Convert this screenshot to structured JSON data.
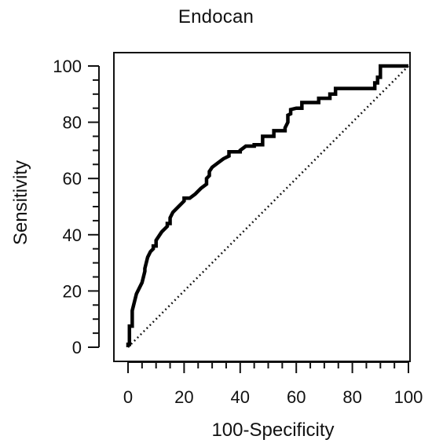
{
  "chart_data": {
    "type": "line",
    "title": "Endocan",
    "xlabel": "100-Specificity",
    "ylabel": "Sensitivity",
    "xlim": [
      0,
      100
    ],
    "ylim": [
      0,
      100
    ],
    "xticks": [
      0,
      20,
      40,
      60,
      80,
      100
    ],
    "yticks": [
      0,
      20,
      40,
      60,
      80,
      100
    ],
    "grid": false,
    "series": [
      {
        "style": "solid",
        "x": [
          0,
          0,
          0.5,
          0.5,
          1.5,
          1.5,
          3,
          5,
          6,
          6,
          7,
          8,
          9,
          9,
          10,
          10,
          12,
          14,
          14,
          15,
          15,
          16,
          18,
          20,
          20,
          22,
          22,
          24,
          26,
          28,
          28,
          29,
          29,
          30,
          32,
          34,
          36,
          36,
          40,
          40,
          42,
          45,
          45,
          48,
          48,
          50,
          52,
          52,
          54,
          56,
          56,
          57,
          57,
          58,
          58,
          60,
          62,
          62,
          66,
          68,
          68,
          72,
          72,
          74,
          74,
          78,
          82,
          86,
          86,
          88,
          88,
          89,
          89,
          90,
          90,
          92,
          94,
          100
        ],
        "y": [
          0,
          1,
          1,
          7.5,
          7.5,
          13,
          19,
          23,
          27,
          28,
          32,
          34,
          35,
          36,
          36,
          38,
          41,
          43,
          44,
          44,
          46,
          48,
          50,
          52,
          53,
          53,
          53,
          54.5,
          56.5,
          58,
          60,
          61,
          62.5,
          64,
          65.5,
          67,
          68,
          69.5,
          69.5,
          70,
          71.5,
          71.5,
          72,
          72,
          75,
          75,
          75,
          77,
          77,
          77,
          78,
          80,
          82.5,
          83,
          84.5,
          85,
          85,
          87,
          87,
          87,
          88.5,
          88.5,
          90,
          90,
          92,
          92,
          92,
          92,
          92,
          92,
          94,
          94,
          96,
          96,
          100,
          100,
          100,
          100
        ]
      },
      {
        "style": "dotted",
        "x": [
          0,
          100
        ],
        "y": [
          0,
          100
        ]
      }
    ]
  }
}
